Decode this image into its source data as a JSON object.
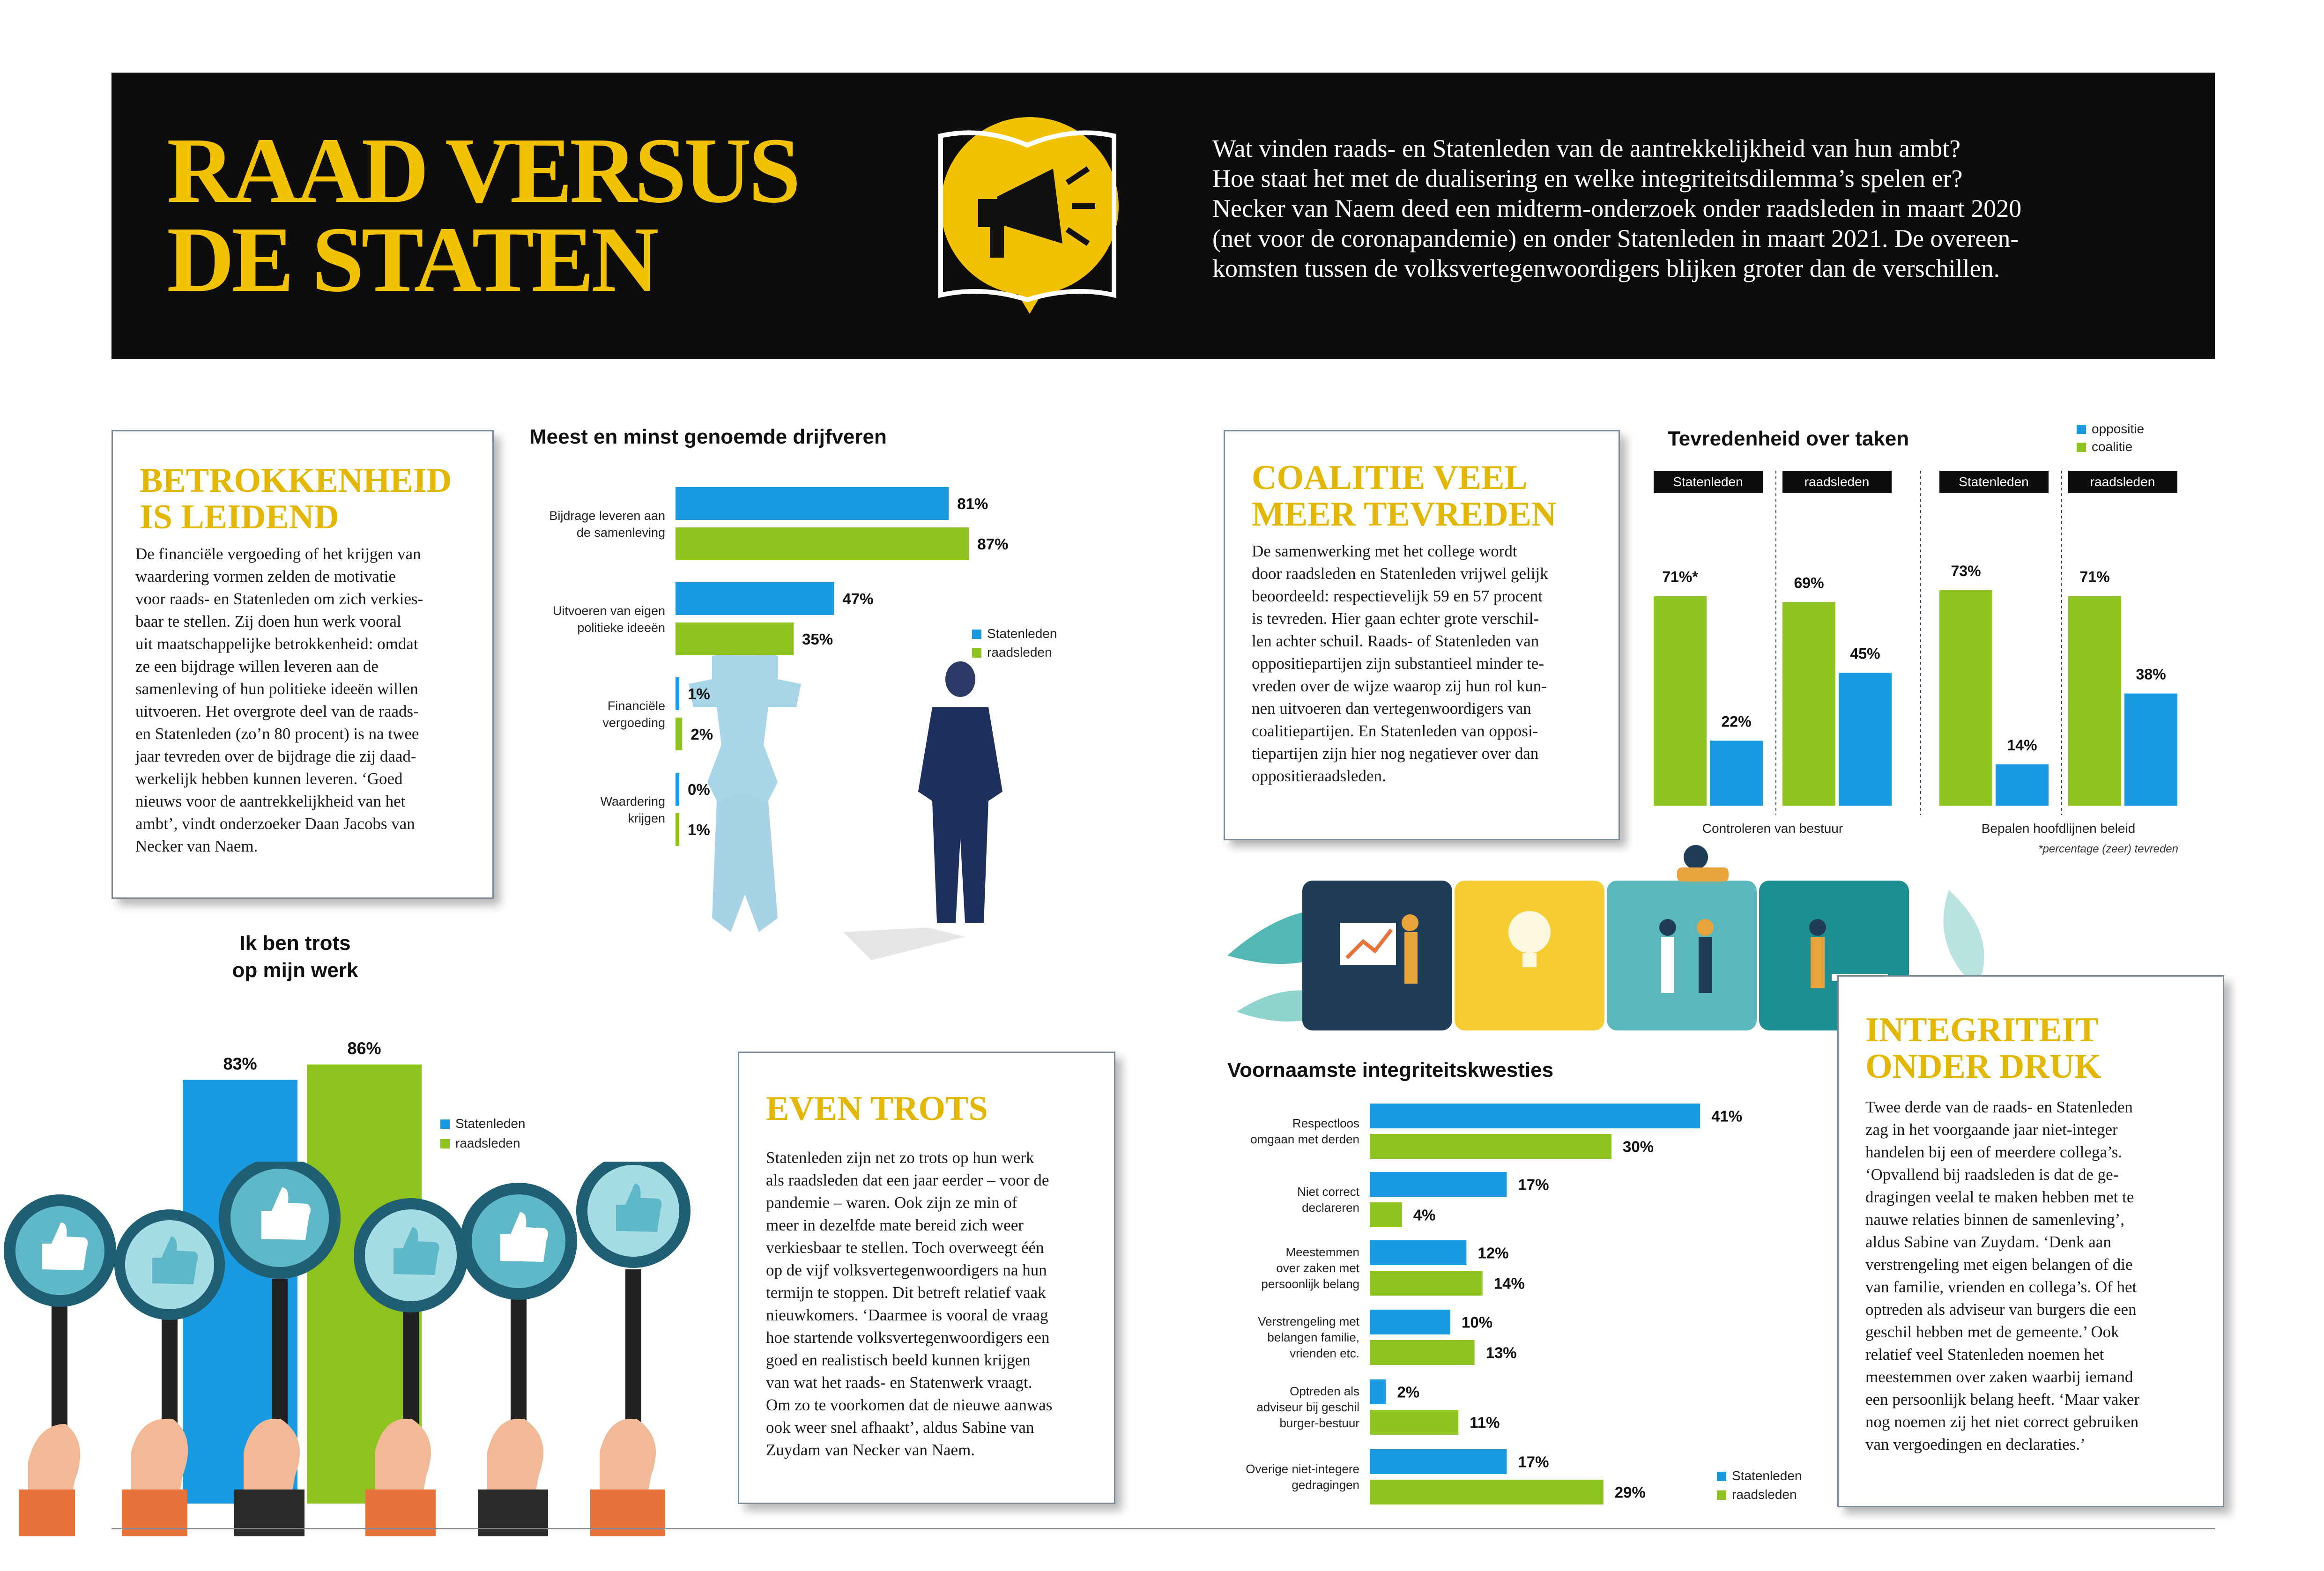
{
  "header": {
    "title_line1": "RAAD VERSUS",
    "title_line2": "DE STATEN",
    "intro_lines": [
      "Wat vinden raads- en Statenleden van de aantrekkelijkheid van hun ambt?",
      "Hoe staat het met de dualisering en welke integriteitsdilemma’s spelen er?",
      "Necker van Naem deed een midterm-onderzoek onder raadsleden in maart 2020",
      "(net voor de coronapandemie) en onder Statenleden in maart 2021. De overeen-",
      "komsten tussen de volksvertegenwoordigers blijken groter dan de verschillen."
    ],
    "icon": "megaphone-icon"
  },
  "articles": {
    "betrokkenheid": {
      "title_lines": [
        "BETROKKENHEID",
        "IS LEIDEND"
      ],
      "body_lines": [
        "De financiële vergoeding of het krijgen van",
        "waardering vormen zelden de motivatie",
        "voor raads- en Statenleden om zich verkies-",
        "baar te stellen. Zij doen hun werk vooral",
        "uit maatschappelijke betrokkenheid: omdat",
        "ze een bijdrage willen leveren aan de",
        "samenleving of hun politieke ideeën willen",
        "uitvoeren. Het overgrote deel van de raads-",
        "en Statenleden (zo’n 80 procent) is na twee",
        "jaar tevreden over de bijdrage die zij daad-",
        "werkelijk hebben kunnen leveren. ‘Goed",
        "nieuws voor de aantrekkelijkheid van het",
        "ambt’, vindt onderzoeker Daan Jacobs van",
        "Necker van Naem."
      ]
    },
    "coalitie": {
      "title_lines": [
        "COALITIE VEEL",
        "MEER TEVREDEN"
      ],
      "body_lines": [
        "De samenwerking met het college wordt",
        "door raadsleden en Statenleden vrijwel gelijk",
        "beoordeeld: respectievelijk 59 en 57 procent",
        "is tevreden. Hier gaan echter grote verschil-",
        "len achter schuil. Raads- of Statenleden van",
        "oppositiepartijen zijn substantieel minder te-",
        "vreden over de wijze waarop zij hun rol kun-",
        "nen uitvoeren dan vertegenwoordigers van",
        "coalitiepartijen. En Statenleden van opposi-",
        "tiepartijen zijn hier nog negatiever over dan",
        "oppositieraadsleden."
      ]
    },
    "trots": {
      "title_lines": [
        "EVEN TROTS"
      ],
      "body_lines": [
        "Statenleden zijn net zo trots op hun werk",
        "als raadsleden dat een jaar eerder – voor de",
        "pandemie – waren. Ook zijn ze min of",
        "meer in dezelfde mate bereid zich weer",
        "verkiesbaar te stellen. Toch overweegt één",
        "op de vijf volksvertegenwoordigers na hun",
        "termijn te stoppen. Dit betreft relatief vaak",
        "nieuwkomers. ‘Daarmee is vooral de vraag",
        "hoe startende volksvertegenwoordigers een",
        "goed en realistisch beeld kunnen krijgen",
        "van wat het raads- en Statenwerk vraagt.",
        "Om zo te voorkomen dat de nieuwe aanwas",
        "ook weer snel afhaakt’, aldus Sabine van",
        "Zuydam van Necker van Naem."
      ]
    },
    "integriteit": {
      "title_lines": [
        "INTEGRITEIT",
        "ONDER DRUK"
      ],
      "body_lines": [
        "Twee derde van de raads- en Statenleden",
        "zag in het voorgaande jaar niet-integer",
        "handelen bij een of meerdere collega’s.",
        "‘Opvallend bij raadsleden is dat de ge-",
        "dragingen veelal te maken hebben met te",
        "nauwe relaties binnen de samenleving’,",
        "aldus Sabine van Zuydam. ‘Denk aan",
        "verstrengeling met eigen belangen of die",
        "van familie, vrienden en collega’s. Of het",
        "optreden als adviseur van burgers die een",
        "geschil hebben met de gemeente.’ Ook",
        "relatief veel Statenleden noemen het",
        "meestemmen over zaken waarbij iemand",
        "een persoonlijk belang heeft. ‘Maar vaker",
        "nog noemen zij het niet correct gebruiken",
        "van vergoedingen en declaraties.’"
      ]
    }
  },
  "colors": {
    "statenleden": "#1a9ae0",
    "raadsleden": "#8dc21f",
    "accent": "#f2c200",
    "header_bg": "#0d0d0d"
  },
  "chart_data": [
    {
      "id": "drijfveren",
      "type": "bar",
      "orientation": "horizontal",
      "title": "Meest en minst genoemde drijfveren",
      "categories": [
        [
          "Bijdrage leveren aan",
          "de samenleving"
        ],
        [
          "Uitvoeren van eigen",
          "politieke ideeën"
        ],
        [
          "Financiële",
          "vergoeding"
        ],
        [
          "Waardering",
          "krijgen"
        ]
      ],
      "series": [
        {
          "name": "Statenleden",
          "values": [
            81,
            47,
            1,
            0
          ]
        },
        {
          "name": "raadsleden",
          "values": [
            87,
            35,
            2,
            1
          ]
        }
      ],
      "unit": "%"
    },
    {
      "id": "trots",
      "type": "bar",
      "title_lines": [
        "Ik ben trots",
        "op mijn werk"
      ],
      "categories": [
        ""
      ],
      "series": [
        {
          "name": "Statenleden",
          "values": [
            83
          ]
        },
        {
          "name": "raadsleden",
          "values": [
            86
          ]
        }
      ],
      "unit": "%"
    },
    {
      "id": "tevredenheid",
      "type": "bar",
      "title": "Tevredenheid over taken",
      "legend": [
        "oppositie",
        "coalitie"
      ],
      "groups": [
        {
          "label": "Controleren van bestuur",
          "panels": [
            {
              "tag": "Statenleden",
              "coalitie": 71,
              "oppositie": 22,
              "coalitie_label": "71%*",
              "oppositie_label": "22%"
            },
            {
              "tag": "raadsleden",
              "coalitie": 69,
              "oppositie": 45,
              "coalitie_label": "69%",
              "oppositie_label": "45%"
            }
          ]
        },
        {
          "label": "Bepalen hoofdlijnen beleid",
          "panels": [
            {
              "tag": "Statenleden",
              "coalitie": 73,
              "oppositie": 14,
              "coalitie_label": "73%",
              "oppositie_label": "14%"
            },
            {
              "tag": "raadsleden",
              "coalitie": 71,
              "oppositie": 38,
              "coalitie_label": "71%",
              "oppositie_label": "38%"
            }
          ]
        }
      ],
      "footnote": "*percentage (zeer) tevreden",
      "unit": "%"
    },
    {
      "id": "integriteit",
      "type": "bar",
      "orientation": "horizontal",
      "title": "Voornaamste integriteitskwesties",
      "categories": [
        [
          "Respectloos",
          "omgaan met derden"
        ],
        [
          "Niet correct",
          "declareren"
        ],
        [
          "Meestemmen",
          "over zaken met",
          "persoonlijk belang"
        ],
        [
          "Verstrengeling met",
          "belangen familie,",
          "vrienden etc."
        ],
        [
          "Optreden als",
          "adviseur bij geschil",
          "burger-bestuur"
        ],
        [
          "Overige niet-integere",
          "gedragingen"
        ]
      ],
      "series": [
        {
          "name": "Statenleden",
          "values": [
            41,
            17,
            12,
            10,
            2,
            17
          ]
        },
        {
          "name": "raadsleden",
          "values": [
            30,
            4,
            14,
            13,
            11,
            29
          ]
        }
      ],
      "unit": "%"
    }
  ]
}
